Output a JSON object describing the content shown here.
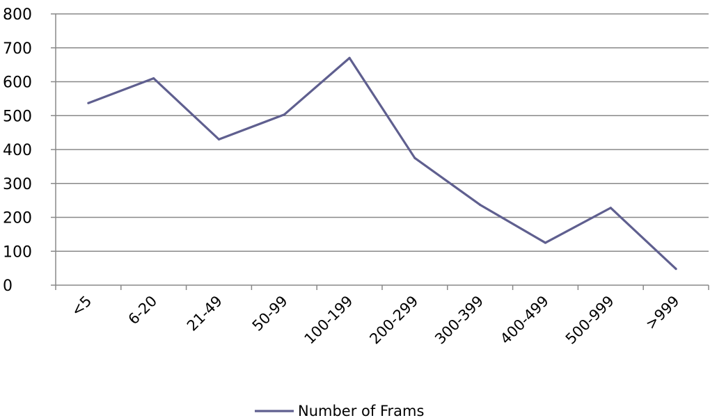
{
  "chart_data": {
    "type": "line",
    "categories": [
      "<5",
      "6-20",
      "21-49",
      "50-99",
      "100-199",
      "200-299",
      "300-399",
      "400-499",
      "500-999",
      ">999"
    ],
    "series": [
      {
        "name": "Number of Frams",
        "color": "#5f5f8f",
        "values": [
          537,
          610,
          430,
          503,
          670,
          375,
          237,
          125,
          228,
          48
        ]
      }
    ],
    "ylim": [
      0,
      800
    ],
    "yticks": [
      0,
      100,
      200,
      300,
      400,
      500,
      600,
      700,
      800
    ],
    "grid": true,
    "legend": "bottom"
  }
}
